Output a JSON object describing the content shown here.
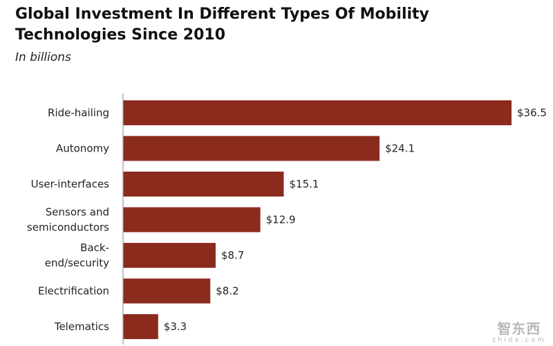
{
  "chart_data": {
    "type": "bar",
    "orientation": "horizontal",
    "title": "Global Investment In Different Types Of Mobility Technologies Since 2010",
    "subtitle": "In billions",
    "categories": [
      [
        "Ride-hailing"
      ],
      [
        "Autonomy"
      ],
      [
        "User-interfaces"
      ],
      [
        "Sensors and",
        "semiconductors"
      ],
      [
        "Back-",
        "end/security"
      ],
      [
        "Electrification"
      ],
      [
        "Telematics"
      ]
    ],
    "values": [
      36.5,
      24.1,
      15.1,
      12.9,
      8.7,
      8.2,
      3.3
    ],
    "value_labels": [
      "$36.5",
      "$24.1",
      "$15.1",
      "$12.9",
      "$8.7",
      "$8.2",
      "$3.3"
    ],
    "xlim": [
      0,
      36.5
    ],
    "grid": false,
    "bar_color": "#8b2b1e",
    "axis_color": "#9a9a9a"
  },
  "watermark": {
    "main": "智东西",
    "sub": "zhidx.com"
  }
}
